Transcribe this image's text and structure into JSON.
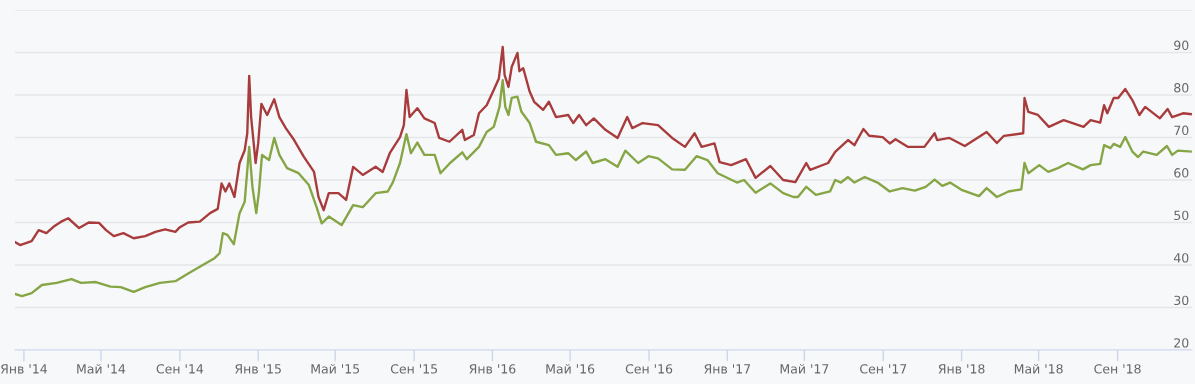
{
  "chart_data": {
    "type": "line",
    "xlim": [
      "2013-12-18",
      "2018-12-26"
    ],
    "xticks": [
      {
        "value": "2014-01-01",
        "label": "Янв '14"
      },
      {
        "value": "2014-05-01",
        "label": "Май '14"
      },
      {
        "value": "2014-09-01",
        "label": "Сен '14"
      },
      {
        "value": "2015-01-01",
        "label": "Янв '15"
      },
      {
        "value": "2015-05-01",
        "label": "Май '15"
      },
      {
        "value": "2015-09-01",
        "label": "Сен '15"
      },
      {
        "value": "2016-01-01",
        "label": "Янв '16"
      },
      {
        "value": "2016-05-01",
        "label": "Май '16"
      },
      {
        "value": "2016-09-01",
        "label": "Сен '16"
      },
      {
        "value": "2017-01-01",
        "label": "Янв '17"
      },
      {
        "value": "2017-05-01",
        "label": "Май '17"
      },
      {
        "value": "2017-09-01",
        "label": "Сен '17"
      },
      {
        "value": "2018-01-01",
        "label": "Янв '18"
      },
      {
        "value": "2018-05-01",
        "label": "Май '18"
      },
      {
        "value": "2018-09-01",
        "label": "Сен '18"
      }
    ],
    "ylim": [
      20,
      100
    ],
    "yticks": [
      20,
      30,
      40,
      50,
      60,
      70,
      80,
      90,
      {
        "value": 100,
        "label": null
      }
    ],
    "grid": "y",
    "marker": "none",
    "line_style": "solid",
    "series": [
      {
        "color": "#a83c3c",
        "x": [
          "2013-12-18",
          "2013-12-26",
          "2014-01-13",
          "2014-01-24",
          "2014-02-05",
          "2014-02-16",
          "2014-02-28",
          "2014-03-11",
          "2014-03-28",
          "2014-04-12",
          "2014-04-28",
          "2014-05-09",
          "2014-05-21",
          "2014-06-05",
          "2014-06-21",
          "2014-07-09",
          "2014-07-25",
          "2014-08-09",
          "2014-08-25",
          "2014-09-01",
          "2014-09-14",
          "2014-10-02",
          "2014-10-18",
          "2014-10-30",
          "2014-11-05",
          "2014-11-11",
          "2014-11-17",
          "2014-11-25",
          "2014-12-03",
          "2014-12-11",
          "2014-12-15",
          "2014-12-18",
          "2014-12-21",
          "2014-12-28",
          "2015-01-01",
          "2015-01-06",
          "2015-01-15",
          "2015-01-26",
          "2015-02-03",
          "2015-02-13",
          "2015-02-26",
          "2015-03-13",
          "2015-03-29",
          "2015-04-05",
          "2015-04-13",
          "2015-04-21",
          "2015-05-06",
          "2015-05-18",
          "2015-05-29",
          "2015-06-13",
          "2015-07-03",
          "2015-07-14",
          "2015-07-25",
          "2015-08-10",
          "2015-08-16",
          "2015-08-20",
          "2015-08-25",
          "2015-09-06",
          "2015-09-17",
          "2015-10-03",
          "2015-10-10",
          "2015-10-26",
          "2015-11-15",
          "2015-11-19",
          "2015-12-03",
          "2015-12-11",
          "2015-12-23",
          "2016-01-03",
          "2016-01-11",
          "2016-01-17",
          "2016-01-20",
          "2016-01-26",
          "2016-01-31",
          "2016-02-09",
          "2016-02-12",
          "2016-02-18",
          "2016-02-28",
          "2016-03-06",
          "2016-03-20",
          "2016-03-29",
          "2016-04-09",
          "2016-04-28",
          "2016-05-06",
          "2016-05-15",
          "2016-05-26",
          "2016-06-07",
          "2016-06-25",
          "2016-07-14",
          "2016-07-29",
          "2016-08-06",
          "2016-08-22",
          "2016-09-15",
          "2016-10-07",
          "2016-10-27",
          "2016-11-11",
          "2016-11-22",
          "2016-12-12",
          "2016-12-20",
          "2017-01-07",
          "2017-01-30",
          "2017-02-14",
          "2017-03-09",
          "2017-03-29",
          "2017-04-17",
          "2017-05-04",
          "2017-05-10",
          "2017-06-07",
          "2017-06-18",
          "2017-07-08",
          "2017-07-18",
          "2017-08-01",
          "2017-08-10",
          "2017-08-31",
          "2017-09-11",
          "2017-09-20",
          "2017-10-09",
          "2017-11-04",
          "2017-11-20",
          "2017-11-24",
          "2017-12-13",
          "2018-01-06",
          "2018-02-09",
          "2018-02-25",
          "2018-03-08",
          "2018-04-07",
          "2018-04-09",
          "2018-04-15",
          "2018-04-30",
          "2018-05-17",
          "2018-06-09",
          "2018-06-23",
          "2018-07-10",
          "2018-07-21",
          "2018-08-05",
          "2018-08-11",
          "2018-08-16",
          "2018-08-26",
          "2018-09-02",
          "2018-09-13",
          "2018-09-24",
          "2018-10-05",
          "2018-10-14",
          "2018-11-06",
          "2018-11-18",
          "2018-11-25",
          "2018-12-12",
          "2018-12-24"
        ],
        "values": [
          45.4,
          44.7,
          45.6,
          48.2,
          47.5,
          49,
          50.2,
          51,
          48.7,
          50,
          49.9,
          48.2,
          46.8,
          47.5,
          46.3,
          46.8,
          47.8,
          48.4,
          47.8,
          48.9,
          50,
          50.2,
          52.2,
          53.2,
          59.2,
          57.3,
          59.2,
          56,
          64,
          67,
          71,
          84.5,
          74.8,
          64,
          68.6,
          77.9,
          75.3,
          79,
          74.8,
          72.2,
          69.4,
          65.5,
          61.9,
          56,
          52.9,
          56.9,
          56.9,
          55.3,
          63.1,
          61.2,
          63.1,
          61.9,
          66.3,
          70.1,
          72.9,
          81.2,
          74.8,
          76.9,
          74.5,
          73.4,
          69.9,
          69,
          71.8,
          69.4,
          70.6,
          75.7,
          77.6,
          81.2,
          83.9,
          91.3,
          84.7,
          81.9,
          86.6,
          89.9,
          85.6,
          86.3,
          80.8,
          78.4,
          76.5,
          78.4,
          74.8,
          75.3,
          73.4,
          75.3,
          72.9,
          74.5,
          71.8,
          69.9,
          74.8,
          72.2,
          73.4,
          72.9,
          69.9,
          67.8,
          71,
          67.8,
          68.6,
          64.2,
          63.5,
          64.9,
          60.5,
          63.3,
          60,
          59.5,
          64,
          62.4,
          64,
          66.6,
          69.4,
          68.2,
          72,
          70.4,
          70.1,
          68.6,
          69.6,
          67.8,
          67.8,
          71,
          69.4,
          69.9,
          68,
          71.3,
          68.7,
          70.4,
          71,
          79.3,
          76,
          75.3,
          72.5,
          74.1,
          73.4,
          72.5,
          74.1,
          73.5,
          77.6,
          75.7,
          79.3,
          79.3,
          81.4,
          78.8,
          75.3,
          77.2,
          74.5,
          76.7,
          74.8,
          75.7,
          75.5
        ]
      },
      {
        "color": "#86a545",
        "x": [
          "2013-12-18",
          "2013-12-29",
          "2014-01-13",
          "2014-01-29",
          "2014-02-21",
          "2014-03-16",
          "2014-03-31",
          "2014-04-23",
          "2014-05-16",
          "2014-06-01",
          "2014-06-21",
          "2014-07-09",
          "2014-08-01",
          "2014-08-25",
          "2014-09-14",
          "2014-10-02",
          "2014-10-25",
          "2014-11-02",
          "2014-11-07",
          "2014-11-14",
          "2014-11-24",
          "2014-12-03",
          "2014-12-11",
          "2014-12-18",
          "2014-12-23",
          "2014-12-29",
          "2015-01-02",
          "2015-01-07",
          "2015-01-18",
          "2015-01-26",
          "2015-02-03",
          "2015-02-15",
          "2015-03-05",
          "2015-03-21",
          "2015-04-02",
          "2015-04-10",
          "2015-04-21",
          "2015-05-11",
          "2015-05-29",
          "2015-06-13",
          "2015-07-03",
          "2015-07-22",
          "2015-07-30",
          "2015-08-10",
          "2015-08-20",
          "2015-08-27",
          "2015-09-06",
          "2015-09-17",
          "2015-10-03",
          "2015-10-12",
          "2015-10-27",
          "2015-11-15",
          "2015-11-22",
          "2015-12-11",
          "2015-12-23",
          "2016-01-03",
          "2016-01-12",
          "2016-01-17",
          "2016-01-21",
          "2016-01-26",
          "2016-01-31",
          "2016-02-09",
          "2016-02-15",
          "2016-02-28",
          "2016-03-09",
          "2016-03-29",
          "2016-04-09",
          "2016-04-28",
          "2016-05-10",
          "2016-05-26",
          "2016-06-05",
          "2016-06-25",
          "2016-07-14",
          "2016-07-26",
          "2016-08-15",
          "2016-08-31",
          "2016-09-15",
          "2016-10-07",
          "2016-10-27",
          "2016-11-14",
          "2016-12-01",
          "2016-12-17",
          "2017-01-16",
          "2017-01-27",
          "2017-02-14",
          "2017-03-09",
          "2017-03-29",
          "2017-04-14",
          "2017-04-21",
          "2017-05-04",
          "2017-05-19",
          "2017-06-10",
          "2017-06-18",
          "2017-06-27",
          "2017-07-08",
          "2017-07-18",
          "2017-08-03",
          "2017-08-23",
          "2017-09-11",
          "2017-10-01",
          "2017-10-20",
          "2017-11-06",
          "2017-11-20",
          "2017-12-02",
          "2017-12-14",
          "2018-01-02",
          "2018-01-28",
          "2018-02-09",
          "2018-02-25",
          "2018-03-15",
          "2018-04-04",
          "2018-04-09",
          "2018-04-15",
          "2018-05-02",
          "2018-05-16",
          "2018-05-31",
          "2018-06-16",
          "2018-07-09",
          "2018-07-21",
          "2018-08-05",
          "2018-08-11",
          "2018-08-21",
          "2018-08-26",
          "2018-09-05",
          "2018-09-13",
          "2018-09-24",
          "2018-10-03",
          "2018-10-11",
          "2018-11-01",
          "2018-11-17",
          "2018-11-25",
          "2018-12-04",
          "2018-12-24"
        ],
        "values": [
          33.2,
          32.7,
          33.4,
          35.3,
          35.8,
          36.7,
          35.8,
          36,
          34.9,
          34.8,
          33.7,
          34.8,
          35.8,
          36.2,
          38,
          39.6,
          41.6,
          42.8,
          47.5,
          47.1,
          44.9,
          52.2,
          54.9,
          67.8,
          58.4,
          52.2,
          56.9,
          65.9,
          64.7,
          69.9,
          65.9,
          62.8,
          61.6,
          58.8,
          53.6,
          49.8,
          51.4,
          49.4,
          54.1,
          53.6,
          56.9,
          57.3,
          59.5,
          64,
          70.8,
          66.3,
          68.8,
          65.9,
          65.9,
          61.6,
          64,
          66.5,
          64.9,
          67.8,
          71.3,
          72.5,
          77.2,
          83.5,
          77.2,
          75.3,
          79.3,
          79.6,
          76.1,
          73.4,
          69,
          68.2,
          65.9,
          66.3,
          64.7,
          66.7,
          64,
          64.9,
          63.1,
          66.9,
          64,
          65.6,
          65.1,
          62.5,
          62.4,
          65.6,
          64.7,
          61.6,
          59.4,
          60,
          57,
          59.2,
          56.9,
          56,
          56,
          58.4,
          56.5,
          57.3,
          60,
          59.4,
          60.7,
          59.4,
          60.7,
          59.4,
          57.3,
          58.1,
          57.5,
          58.4,
          60.1,
          58.6,
          59.4,
          57.6,
          56.2,
          58.1,
          56,
          57.3,
          57.8,
          64,
          61.6,
          63.5,
          61.9,
          62.8,
          64,
          62.5,
          63.5,
          63.8,
          68.2,
          67.5,
          68.5,
          67.8,
          70.1,
          66.7,
          65.4,
          66.7,
          65.9,
          68,
          65.9,
          66.9,
          66.7
        ]
      }
    ]
  }
}
